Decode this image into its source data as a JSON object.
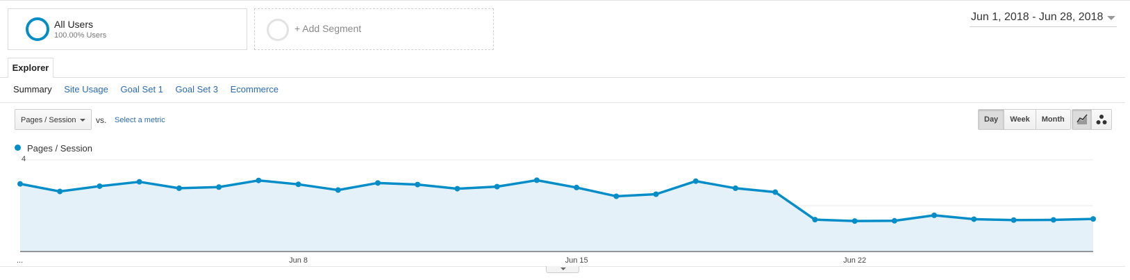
{
  "segment": {
    "name": "All Users",
    "subtitle": "100.00% Users"
  },
  "add_segment": {
    "label": "+ Add Segment"
  },
  "date_range": {
    "label": "Jun 1, 2018 - Jun 28, 2018"
  },
  "tabs": {
    "explorer": "Explorer"
  },
  "subnav": {
    "items": [
      "Summary",
      "Site Usage",
      "Goal Set 1",
      "Goal Set 3",
      "Ecommerce"
    ],
    "active": "Summary"
  },
  "metric": {
    "selected": "Pages / Session",
    "vs": "vs.",
    "select_metric": "Select a metric"
  },
  "range_buttons": {
    "day": "Day",
    "week": "Week",
    "month": "Month",
    "selected": "Day"
  },
  "chart_type_buttons": {
    "line": "line-chart-icon",
    "motion": "motion-chart-icon",
    "selected": "line"
  },
  "legend": {
    "series": "Pages / Session"
  },
  "colors": {
    "series": "#058dc7",
    "fill": "#e5f1f8",
    "link": "#2a6ab1"
  },
  "chart_data": {
    "type": "area",
    "x": [
      "Jun 1",
      "Jun 2",
      "Jun 3",
      "Jun 4",
      "Jun 5",
      "Jun 6",
      "Jun 7",
      "Jun 8",
      "Jun 9",
      "Jun 10",
      "Jun 11",
      "Jun 12",
      "Jun 13",
      "Jun 14",
      "Jun 15",
      "Jun 16",
      "Jun 17",
      "Jun 18",
      "Jun 19",
      "Jun 20",
      "Jun 21",
      "Jun 22",
      "Jun 23",
      "Jun 24",
      "Jun 25",
      "Jun 26",
      "Jun 27",
      "Jun 28"
    ],
    "x_tick_labels": [
      "...",
      "Jun 8",
      "Jun 15",
      "Jun 22"
    ],
    "series": [
      {
        "name": "Pages / Session",
        "values": [
          2.95,
          2.62,
          2.85,
          3.04,
          2.76,
          2.81,
          3.1,
          2.93,
          2.68,
          2.99,
          2.92,
          2.74,
          2.83,
          3.11,
          2.79,
          2.41,
          2.5,
          3.07,
          2.76,
          2.59,
          1.39,
          1.33,
          1.34,
          1.58,
          1.41,
          1.37,
          1.38,
          1.42
        ]
      }
    ],
    "y_ticks": [
      2,
      4
    ],
    "ylim": [
      0,
      4
    ],
    "grid": true,
    "legend_position": "top-left"
  }
}
